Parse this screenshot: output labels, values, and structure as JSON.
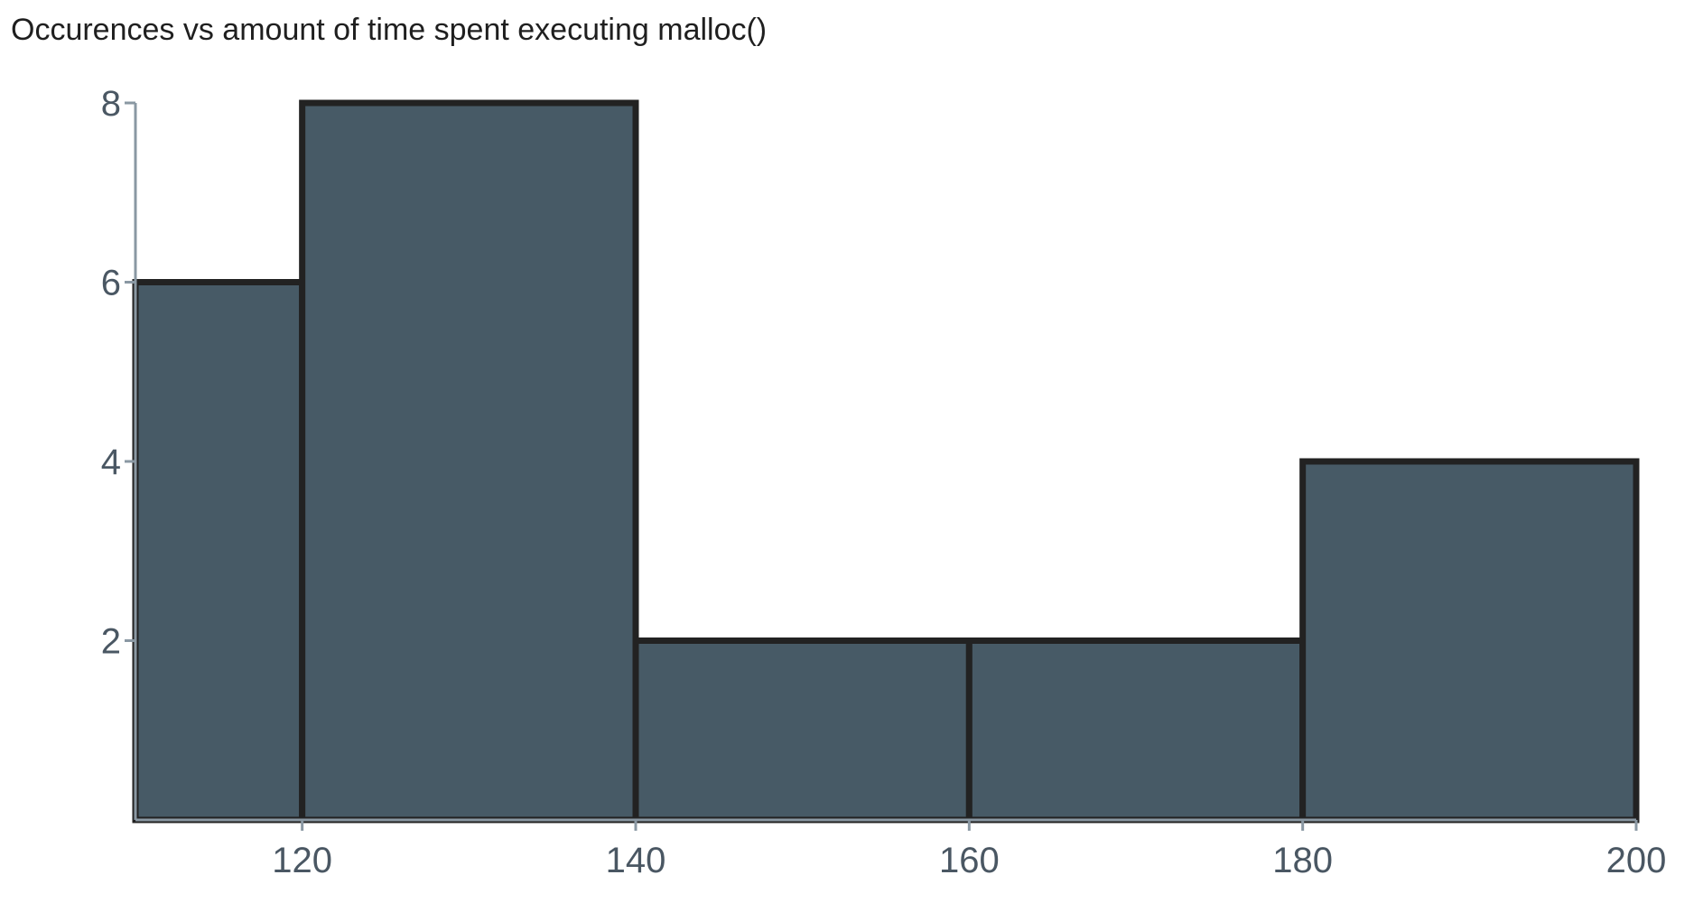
{
  "chart_data": {
    "type": "bar",
    "title": "Occurences vs amount of time spent executing malloc()",
    "xlabel": "",
    "ylabel": "",
    "bins": [
      {
        "x0": 110,
        "x1": 120,
        "value": 6
      },
      {
        "x0": 120,
        "x1": 140,
        "value": 8
      },
      {
        "x0": 140,
        "x1": 160,
        "value": 2
      },
      {
        "x0": 160,
        "x1": 180,
        "value": 2
      },
      {
        "x0": 180,
        "x1": 200,
        "value": 4
      }
    ],
    "xlim": [
      110,
      200
    ],
    "ylim": [
      0,
      8
    ],
    "x_ticks": [
      120,
      140,
      160,
      180,
      200
    ],
    "y_ticks": [
      2,
      4,
      6,
      8
    ],
    "grid": false,
    "colors": {
      "bar_fill": "#475a66",
      "bar_stroke": "#222222",
      "axis": "#8a98a3",
      "tick_text": "#4a5763",
      "title_text": "#1f1f1f"
    }
  }
}
